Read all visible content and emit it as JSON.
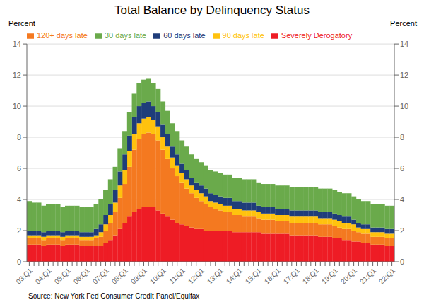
{
  "chart_data": {
    "type": "bar",
    "title": "Total Balance by Delinquency Status",
    "ylabel": "Percent",
    "y2label": "Percent",
    "annotations": [
      "Source: New York Fed Consumer Credit Panel/Equifax"
    ],
    "stacked": true,
    "grid": true,
    "legend": "upper left",
    "ylim": [
      0,
      14
    ],
    "yticks": [
      0,
      2,
      4,
      6,
      8,
      10,
      12,
      14
    ],
    "y2lim": [
      0,
      14
    ],
    "y2ticks": [
      0,
      2,
      4,
      6,
      8,
      10,
      12,
      14
    ],
    "categories": [
      "03:Q1",
      null,
      null,
      null,
      "04:Q1",
      null,
      null,
      null,
      "05:Q1",
      null,
      null,
      null,
      "06:Q1",
      null,
      null,
      null,
      "07:Q1",
      null,
      null,
      null,
      "08:Q1",
      null,
      null,
      null,
      "09:Q1",
      null,
      null,
      null,
      "10:Q1",
      null,
      null,
      null,
      "11:Q1",
      null,
      null,
      null,
      "12:Q1",
      null,
      null,
      null,
      "13:Q1",
      null,
      null,
      null,
      "14:Q1",
      null,
      null,
      null,
      "15:Q1",
      null,
      null,
      null,
      "16:Q1",
      null,
      null,
      null,
      "17:Q1",
      null,
      null,
      null,
      "18:Q1",
      null,
      null,
      null,
      "19:Q1",
      null,
      null,
      null,
      "20:Q1",
      null,
      null,
      null,
      "21:Q1",
      null,
      null,
      null,
      "22:Q1"
    ],
    "series": [
      {
        "name": "Severely Derogatory",
        "color": "#ee1c25",
        "values": [
          1.1,
          1.1,
          1.1,
          1.0,
          1.1,
          1.1,
          1.1,
          1.0,
          1.1,
          1.1,
          1.1,
          1.0,
          1.0,
          1.0,
          1.0,
          1.0,
          1.2,
          1.4,
          1.7,
          2.1,
          2.5,
          2.9,
          3.2,
          3.4,
          3.5,
          3.5,
          3.5,
          3.3,
          3.1,
          2.9,
          2.7,
          2.5,
          2.4,
          2.3,
          2.2,
          2.1,
          2.1,
          2.0,
          2.0,
          2.0,
          2.0,
          2.0,
          2.0,
          1.9,
          1.9,
          1.9,
          1.9,
          1.9,
          1.9,
          1.8,
          1.8,
          1.8,
          1.8,
          1.8,
          1.8,
          1.7,
          1.7,
          1.7,
          1.7,
          1.7,
          1.7,
          1.6,
          1.6,
          1.6,
          1.5,
          1.5,
          1.4,
          1.4,
          1.3,
          1.3,
          1.2,
          1.2,
          1.1,
          1.1,
          1.1,
          1.0,
          1.0
        ]
      },
      {
        "name": "120+ days late",
        "color": "#f47920",
        "values": [
          0.4,
          0.4,
          0.4,
          0.4,
          0.4,
          0.4,
          0.4,
          0.4,
          0.4,
          0.4,
          0.4,
          0.4,
          0.4,
          0.4,
          0.5,
          0.6,
          0.8,
          1.1,
          1.5,
          2.0,
          2.5,
          3.2,
          4.0,
          4.5,
          4.7,
          4.8,
          4.7,
          4.5,
          4.1,
          3.7,
          3.3,
          3.0,
          2.7,
          2.4,
          2.2,
          2.0,
          1.8,
          1.7,
          1.5,
          1.4,
          1.3,
          1.2,
          1.2,
          1.1,
          1.1,
          1.0,
          1.0,
          1.0,
          0.9,
          0.9,
          0.9,
          0.9,
          0.8,
          0.8,
          0.8,
          0.8,
          0.8,
          0.8,
          0.8,
          0.8,
          0.8,
          0.8,
          0.8,
          0.8,
          0.8,
          0.7,
          0.7,
          0.7,
          0.7,
          0.6,
          0.6,
          0.6,
          0.5,
          0.5,
          0.5,
          0.5,
          0.5
        ]
      },
      {
        "name": "90 days late",
        "color": "#ffc20e",
        "values": [
          0.2,
          0.2,
          0.2,
          0.2,
          0.2,
          0.2,
          0.2,
          0.2,
          0.2,
          0.2,
          0.2,
          0.2,
          0.2,
          0.2,
          0.2,
          0.3,
          0.4,
          0.5,
          0.6,
          0.8,
          0.9,
          1.0,
          1.0,
          1.0,
          1.0,
          1.0,
          0.9,
          0.9,
          0.8,
          0.8,
          0.7,
          0.7,
          0.6,
          0.6,
          0.5,
          0.5,
          0.5,
          0.5,
          0.4,
          0.4,
          0.4,
          0.4,
          0.4,
          0.4,
          0.4,
          0.4,
          0.4,
          0.4,
          0.4,
          0.4,
          0.4,
          0.4,
          0.4,
          0.4,
          0.4,
          0.4,
          0.4,
          0.4,
          0.4,
          0.4,
          0.4,
          0.4,
          0.4,
          0.4,
          0.4,
          0.4,
          0.4,
          0.4,
          0.4,
          0.3,
          0.3,
          0.3,
          0.3,
          0.3,
          0.3,
          0.3,
          0.3
        ]
      },
      {
        "name": "60 days late",
        "color": "#1f3d7a",
        "values": [
          0.3,
          0.3,
          0.3,
          0.3,
          0.3,
          0.3,
          0.3,
          0.3,
          0.3,
          0.3,
          0.3,
          0.3,
          0.3,
          0.3,
          0.4,
          0.5,
          0.6,
          0.7,
          0.8,
          0.9,
          1.0,
          1.0,
          1.1,
          1.1,
          1.0,
          1.0,
          0.9,
          0.9,
          0.8,
          0.8,
          0.7,
          0.7,
          0.6,
          0.6,
          0.5,
          0.5,
          0.5,
          0.5,
          0.5,
          0.5,
          0.5,
          0.5,
          0.5,
          0.5,
          0.5,
          0.5,
          0.5,
          0.5,
          0.4,
          0.4,
          0.4,
          0.4,
          0.4,
          0.4,
          0.4,
          0.4,
          0.4,
          0.4,
          0.4,
          0.4,
          0.4,
          0.4,
          0.4,
          0.4,
          0.4,
          0.4,
          0.4,
          0.4,
          0.3,
          0.3,
          0.3,
          0.3,
          0.3,
          0.3,
          0.3,
          0.3,
          0.3
        ]
      },
      {
        "name": "30 days late",
        "color": "#6aaa4b",
        "values": [
          1.9,
          1.8,
          1.8,
          1.7,
          1.7,
          1.7,
          1.7,
          1.6,
          1.6,
          1.6,
          1.6,
          1.6,
          1.6,
          1.6,
          1.6,
          1.6,
          1.6,
          1.6,
          1.5,
          1.5,
          1.5,
          1.5,
          1.5,
          1.5,
          1.5,
          1.5,
          1.5,
          1.5,
          1.5,
          1.5,
          1.5,
          1.5,
          1.5,
          1.5,
          1.5,
          1.5,
          1.5,
          1.5,
          1.5,
          1.5,
          1.5,
          1.5,
          1.5,
          1.5,
          1.5,
          1.5,
          1.5,
          1.5,
          1.5,
          1.5,
          1.5,
          1.5,
          1.5,
          1.5,
          1.5,
          1.5,
          1.5,
          1.5,
          1.5,
          1.5,
          1.5,
          1.5,
          1.5,
          1.5,
          1.5,
          1.5,
          1.5,
          1.5,
          1.5,
          1.5,
          1.5,
          1.5,
          1.5,
          1.5,
          1.5,
          1.5,
          1.5
        ]
      }
    ]
  }
}
